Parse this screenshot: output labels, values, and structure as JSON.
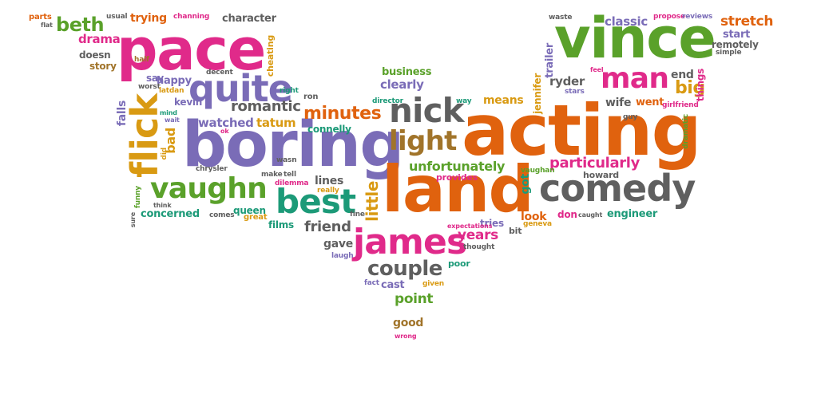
{
  "palette": {
    "pink": "#e02a8a",
    "green": "#5aa12a",
    "purple": "#7a6cb7",
    "orange": "#e0620e",
    "teal": "#1c9a78",
    "gray": "#5f5f5f",
    "gold": "#d99a12",
    "brown": "#a1742a"
  },
  "words": [
    {
      "text": "acting",
      "color": "orange"
    },
    {
      "text": "boring",
      "color": "purple"
    },
    {
      "text": "land",
      "color": "orange"
    },
    {
      "text": "pace",
      "color": "pink"
    },
    {
      "text": "vince",
      "color": "green"
    },
    {
      "text": "comedy",
      "color": "gray"
    },
    {
      "text": "james",
      "color": "pink"
    },
    {
      "text": "best",
      "color": "teal"
    },
    {
      "text": "vaughn",
      "color": "green"
    },
    {
      "text": "nick",
      "color": "gray"
    },
    {
      "text": "quite",
      "color": "purple"
    },
    {
      "text": "man",
      "color": "pink"
    },
    {
      "text": "light",
      "color": "brown"
    },
    {
      "text": "flick",
      "color": "gold"
    },
    {
      "text": "couple",
      "color": "gray"
    },
    {
      "text": "minutes",
      "color": "orange"
    },
    {
      "text": "particularly",
      "color": "pink"
    },
    {
      "text": "unfortunately",
      "color": "green"
    },
    {
      "text": "romantic",
      "color": "gray"
    },
    {
      "text": "beth",
      "color": "green"
    },
    {
      "text": "big",
      "color": "gold"
    },
    {
      "text": "stretch",
      "color": "orange"
    },
    {
      "text": "friend",
      "color": "gray"
    },
    {
      "text": "years",
      "color": "pink"
    },
    {
      "text": "ryder",
      "color": "gray"
    },
    {
      "text": "little",
      "color": "gold"
    },
    {
      "text": "classic",
      "color": "purple"
    },
    {
      "text": "watched",
      "color": "purple"
    },
    {
      "text": "tatum",
      "color": "gold"
    },
    {
      "text": "went",
      "color": "orange"
    },
    {
      "text": "wife",
      "color": "gray"
    },
    {
      "text": "point",
      "color": "green"
    },
    {
      "text": "end",
      "color": "gray"
    },
    {
      "text": "drama",
      "color": "pink"
    },
    {
      "text": "engineer",
      "color": "teal"
    },
    {
      "text": "concerned",
      "color": "teal"
    },
    {
      "text": "lines",
      "color": "gray"
    },
    {
      "text": "queen",
      "color": "teal"
    },
    {
      "text": "happy",
      "color": "purple"
    },
    {
      "text": "clearly",
      "color": "purple"
    },
    {
      "text": "business",
      "color": "green"
    },
    {
      "text": "means",
      "color": "gold"
    },
    {
      "text": "start",
      "color": "purple"
    },
    {
      "text": "kevin",
      "color": "purple"
    },
    {
      "text": "good",
      "color": "brown"
    },
    {
      "text": "look",
      "color": "orange"
    },
    {
      "text": "gave",
      "color": "gray"
    },
    {
      "text": "cast",
      "color": "purple"
    },
    {
      "text": "say",
      "color": "purple"
    },
    {
      "text": "story",
      "color": "brown"
    },
    {
      "text": "doesn",
      "color": "gray"
    },
    {
      "text": "trying",
      "color": "orange"
    },
    {
      "text": "character",
      "color": "gray"
    },
    {
      "text": "falls",
      "color": "purple"
    },
    {
      "text": "connelly",
      "color": "teal"
    },
    {
      "text": "howard",
      "color": "gray"
    },
    {
      "text": "don",
      "color": "pink"
    },
    {
      "text": "provides",
      "color": "pink"
    },
    {
      "text": "tries",
      "color": "purple"
    },
    {
      "text": "bit",
      "color": "gray"
    },
    {
      "text": "films",
      "color": "teal"
    },
    {
      "text": "got",
      "color": "teal"
    },
    {
      "text": "things",
      "color": "pink"
    },
    {
      "text": "cheating",
      "color": "gold"
    },
    {
      "text": "jennifer",
      "color": "gold"
    },
    {
      "text": "trailer",
      "color": "purple"
    },
    {
      "text": "remotely",
      "color": "gray"
    },
    {
      "text": "poor",
      "color": "teal"
    },
    {
      "text": "bad",
      "color": "gold"
    },
    {
      "text": "ron",
      "color": "gray"
    },
    {
      "text": "waste",
      "color": "gray"
    },
    {
      "text": "propose",
      "color": "pink"
    },
    {
      "text": "reviews",
      "color": "purple"
    },
    {
      "text": "flat",
      "color": "gray"
    },
    {
      "text": "parts",
      "color": "orange"
    },
    {
      "text": "usual",
      "color": "gray"
    },
    {
      "text": "channing",
      "color": "pink"
    },
    {
      "text": "half",
      "color": "brown"
    },
    {
      "text": "worst",
      "color": "gray"
    },
    {
      "text": "latdan",
      "color": "gold"
    },
    {
      "text": "decent",
      "color": "gray"
    },
    {
      "text": "right",
      "color": "teal"
    },
    {
      "text": "director",
      "color": "teal"
    },
    {
      "text": "way",
      "color": "teal"
    },
    {
      "text": "feel",
      "color": "pink"
    },
    {
      "text": "stars",
      "color": "purple"
    },
    {
      "text": "guy",
      "color": "gray"
    },
    {
      "text": "girlfriend",
      "color": "pink"
    },
    {
      "text": "dramatic",
      "color": "green"
    },
    {
      "text": "simple",
      "color": "gray"
    },
    {
      "text": "mind",
      "color": "teal"
    },
    {
      "text": "wait",
      "color": "purple"
    },
    {
      "text": "did",
      "color": "gold"
    },
    {
      "text": "chrysler",
      "color": "gray"
    },
    {
      "text": "make",
      "color": "gray"
    },
    {
      "text": "tell",
      "color": "gray"
    },
    {
      "text": "dilemma",
      "color": "pink"
    },
    {
      "text": "really",
      "color": "gold"
    },
    {
      "text": "wasn",
      "color": "gray"
    },
    {
      "text": "funny",
      "color": "green"
    },
    {
      "text": "think",
      "color": "gray"
    },
    {
      "text": "comes",
      "color": "gray"
    },
    {
      "text": "ok",
      "color": "pink"
    },
    {
      "text": "great",
      "color": "gold"
    },
    {
      "text": "fine",
      "color": "gray"
    },
    {
      "text": "laugh",
      "color": "purple"
    },
    {
      "text": "thought",
      "color": "gray"
    },
    {
      "text": "expectations",
      "color": "pink"
    },
    {
      "text": "geneva",
      "color": "gold"
    },
    {
      "text": "vaughan",
      "color": "green"
    },
    {
      "text": "fact",
      "color": "purple"
    },
    {
      "text": "given",
      "color": "gold"
    },
    {
      "text": "wrong",
      "color": "pink"
    },
    {
      "text": "caught",
      "color": "gray"
    },
    {
      "text": "sure",
      "color": "gray"
    }
  ]
}
